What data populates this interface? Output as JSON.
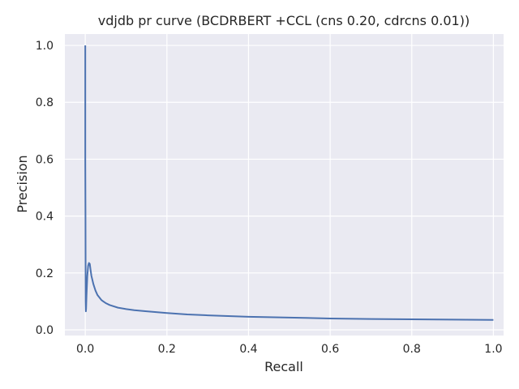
{
  "chart_data": {
    "type": "line",
    "title": "vdjdb pr curve (BCDRBERT +CCL (cns 0.20, cdrcns 0.01))",
    "xlabel": "Recall",
    "ylabel": "Precision",
    "xlim": [
      -0.05,
      1.025
    ],
    "ylim": [
      -0.02,
      1.04
    ],
    "grid": true,
    "legend": "none",
    "colors": {
      "background": "#eaeaf2",
      "grid": "#ffffff",
      "line": "#4c72b0",
      "text": "#262626"
    },
    "x_ticks": [
      {
        "value": 0.0,
        "label": "0.0"
      },
      {
        "value": 0.2,
        "label": "0.2"
      },
      {
        "value": 0.4,
        "label": "0.4"
      },
      {
        "value": 0.6,
        "label": "0.6"
      },
      {
        "value": 0.8,
        "label": "0.8"
      },
      {
        "value": 1.0,
        "label": "1.0"
      }
    ],
    "y_ticks": [
      {
        "value": 0.0,
        "label": "0.0"
      },
      {
        "value": 0.2,
        "label": "0.2"
      },
      {
        "value": 0.4,
        "label": "0.4"
      },
      {
        "value": 0.6,
        "label": "0.6"
      },
      {
        "value": 0.8,
        "label": "0.8"
      },
      {
        "value": 1.0,
        "label": "1.0"
      }
    ],
    "series": [
      {
        "x": [
          0.0,
          0.0,
          0.0005,
          0.0008,
          0.001,
          0.0015,
          0.002,
          0.003,
          0.005,
          0.007,
          0.009,
          0.011,
          0.013,
          0.015,
          0.02,
          0.025,
          0.03,
          0.04,
          0.05,
          0.06,
          0.08,
          0.1,
          0.12,
          0.15,
          0.2,
          0.25,
          0.3,
          0.4,
          0.5,
          0.6,
          0.7,
          0.8,
          0.9,
          1.0
        ],
        "y": [
          1.0,
          0.6,
          0.4,
          0.2,
          0.1,
          0.065,
          0.075,
          0.12,
          0.19,
          0.225,
          0.235,
          0.232,
          0.21,
          0.19,
          0.16,
          0.138,
          0.122,
          0.104,
          0.094,
          0.087,
          0.078,
          0.073,
          0.069,
          0.065,
          0.059,
          0.054,
          0.051,
          0.046,
          0.043,
          0.04,
          0.038,
          0.037,
          0.036,
          0.035
        ]
      }
    ]
  }
}
